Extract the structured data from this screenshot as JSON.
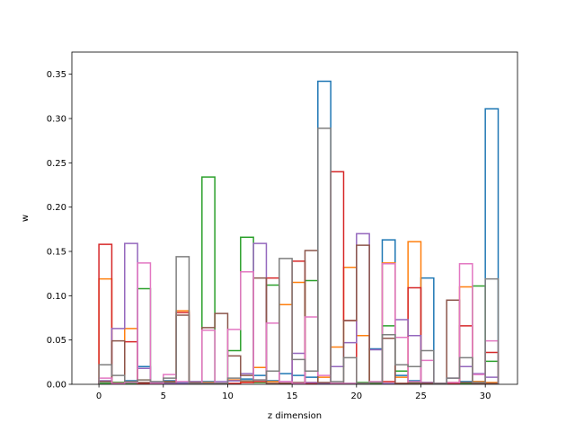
{
  "chart_data": {
    "type": "line",
    "step": "edges",
    "xlabel": "z dimension",
    "ylabel": "w",
    "xlim": [
      -2.1,
      32.5
    ],
    "ylim": [
      0,
      0.375
    ],
    "xticks": [
      0,
      5,
      10,
      15,
      20,
      25,
      30
    ],
    "yticks": [
      0.0,
      0.05,
      0.1,
      0.15,
      0.2,
      0.25,
      0.3,
      0.35
    ],
    "edges": [
      0,
      1,
      2,
      3,
      4,
      5,
      6,
      7,
      8,
      9,
      10,
      11,
      12,
      13,
      14,
      15,
      16,
      17,
      18,
      19,
      20,
      21,
      22,
      23,
      24,
      25,
      26,
      27,
      28,
      29,
      30,
      31
    ],
    "grid": false,
    "legend": "none",
    "series": [
      {
        "color": "#1f77b4",
        "values": [
          0.003,
          0.002,
          0.004,
          0.02,
          0.002,
          0.004,
          0.002,
          0.001,
          0.003,
          0.001,
          0.004,
          0.006,
          0.01,
          0.004,
          0.012,
          0.01,
          0.008,
          0.342,
          0.001,
          0.001,
          0.001,
          0.04,
          0.163,
          0.01,
          0.004,
          0.12,
          0.001,
          0.002,
          0.003,
          0.003,
          0.311
        ]
      },
      {
        "color": "#ff7f0e",
        "values": [
          0.119,
          0.002,
          0.063,
          0.005,
          0.001,
          0.003,
          0.083,
          0.001,
          0.002,
          0.001,
          0.005,
          0.003,
          0.019,
          0.003,
          0.09,
          0.115,
          0.002,
          0.008,
          0.042,
          0.132,
          0.055,
          0.001,
          0.137,
          0.008,
          0.161,
          0.002,
          0.001,
          0.002,
          0.11,
          0.003,
          0.002
        ]
      },
      {
        "color": "#2ca02c",
        "values": [
          0.001,
          0.002,
          0.001,
          0.108,
          0.001,
          0.002,
          0.001,
          0.001,
          0.234,
          0.001,
          0.038,
          0.166,
          0.002,
          0.112,
          0.001,
          0.001,
          0.117,
          0.001,
          0.001,
          0.001,
          0.002,
          0.001,
          0.066,
          0.015,
          0.002,
          0.001,
          0.001,
          0.001,
          0.001,
          0.111,
          0.026
        ]
      },
      {
        "color": "#d62728",
        "values": [
          0.158,
          0.001,
          0.048,
          0.001,
          0.002,
          0.001,
          0.081,
          0.001,
          0.001,
          0.001,
          0.001,
          0.002,
          0.003,
          0.12,
          0.001,
          0.139,
          0.001,
          0.001,
          0.24,
          0.072,
          0.001,
          0.002,
          0.003,
          0.001,
          0.109,
          0.001,
          0.001,
          0.001,
          0.066,
          0.001,
          0.036
        ]
      },
      {
        "color": "#9467bd",
        "values": [
          0.004,
          0.063,
          0.159,
          0.018,
          0.002,
          0.001,
          0.001,
          0.003,
          0.001,
          0.003,
          0.004,
          0.012,
          0.159,
          0.015,
          0.003,
          0.035,
          0.002,
          0.001,
          0.02,
          0.047,
          0.17,
          0.039,
          0.001,
          0.073,
          0.055,
          0.002,
          0.001,
          0.007,
          0.02,
          0.012,
          0.008
        ]
      },
      {
        "color": "#8c564b",
        "values": [
          0.003,
          0.049,
          0.003,
          0.002,
          0.001,
          0.003,
          0.078,
          0.002,
          0.064,
          0.08,
          0.032,
          0.01,
          0.12,
          0.001,
          0.001,
          0.002,
          0.151,
          0.002,
          0.001,
          0.072,
          0.157,
          0.002,
          0.052,
          0.001,
          0.001,
          0.001,
          0.001,
          0.095,
          0.002,
          0.001,
          0.001
        ]
      },
      {
        "color": "#e377c2",
        "values": [
          0.007,
          0.001,
          0.002,
          0.137,
          0.001,
          0.011,
          0.003,
          0.001,
          0.061,
          0.001,
          0.062,
          0.127,
          0.005,
          0.069,
          0.003,
          0.001,
          0.076,
          0.01,
          0.001,
          0.001,
          0.001,
          0.003,
          0.136,
          0.053,
          0.003,
          0.027,
          0.001,
          0.002,
          0.136,
          0.011,
          0.049
        ]
      },
      {
        "color": "#7f7f7f",
        "values": [
          0.022,
          0.01,
          0.003,
          0.005,
          0.003,
          0.007,
          0.144,
          0.001,
          0.001,
          0.001,
          0.007,
          0.004,
          0.005,
          0.015,
          0.142,
          0.028,
          0.015,
          0.289,
          0.003,
          0.03,
          0.001,
          0.002,
          0.056,
          0.022,
          0.02,
          0.038,
          0.001,
          0.007,
          0.03,
          0.002,
          0.119
        ]
      }
    ]
  }
}
